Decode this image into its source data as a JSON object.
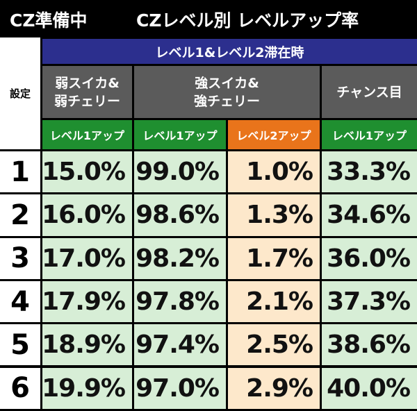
{
  "header": {
    "title_left": "CZ準備中",
    "title_right": "CZレベル別 レベルアップ率"
  },
  "table": {
    "setting_label": "設定",
    "group_header": "レベル1&レベル2滞在時",
    "role_headers": [
      "弱スイカ&\n弱チェリー",
      "強スイカ&\n強チェリー",
      "チャンス目"
    ],
    "level_headers": [
      "レベル1アップ",
      "レベル1アップ",
      "レベル2アップ",
      "レベル1アップ"
    ],
    "rows": [
      {
        "setting": "1",
        "values": [
          "15.0%",
          "99.0%",
          "1.0%",
          "33.3%"
        ]
      },
      {
        "setting": "2",
        "values": [
          "16.0%",
          "98.6%",
          "1.3%",
          "34.6%"
        ]
      },
      {
        "setting": "3",
        "values": [
          "17.0%",
          "98.2%",
          "1.7%",
          "36.0%"
        ]
      },
      {
        "setting": "4",
        "values": [
          "17.9%",
          "97.8%",
          "2.1%",
          "37.3%"
        ]
      },
      {
        "setting": "5",
        "values": [
          "18.9%",
          "97.4%",
          "2.5%",
          "38.6%"
        ]
      },
      {
        "setting": "6",
        "values": [
          "19.9%",
          "97.0%",
          "2.9%",
          "40.0%"
        ]
      }
    ]
  }
}
